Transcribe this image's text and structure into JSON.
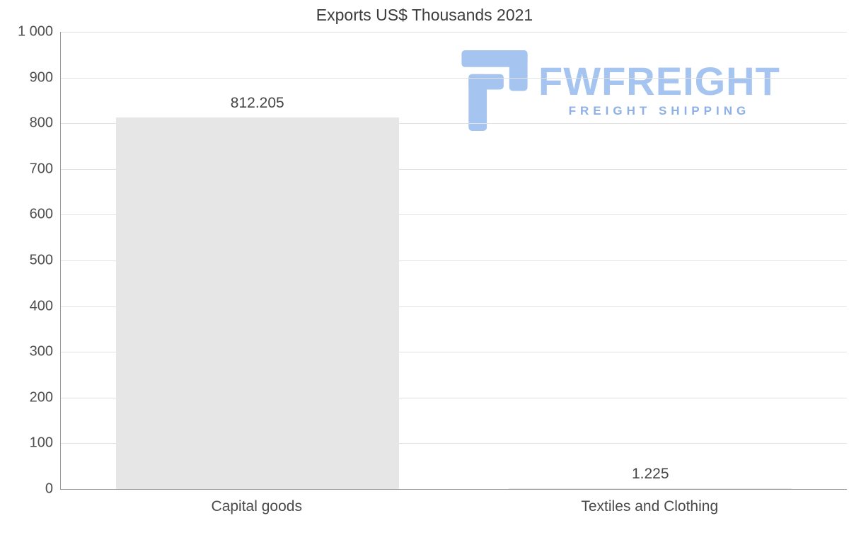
{
  "chart_data": {
    "type": "bar",
    "title": "Exports US$ Thousands 2021",
    "categories": [
      "Capital goods",
      "Textiles and Clothing"
    ],
    "values": [
      812.205,
      1.225
    ],
    "value_labels": [
      "812.205",
      "1.225"
    ],
    "ylim": [
      0,
      1000
    ],
    "yticks": [
      0,
      100,
      200,
      300,
      400,
      500,
      600,
      700,
      800,
      900,
      1000
    ],
    "ytick_labels": [
      "0",
      "100",
      "200",
      "300",
      "400",
      "500",
      "600",
      "700",
      "800",
      "900",
      "1 000"
    ],
    "xlabel": "",
    "ylabel": "",
    "grid": "horizontal",
    "legend": "none",
    "bar_color": "#e6e6e6",
    "bar_width_frac": 0.72
  },
  "logo": {
    "name": "FWFREIGHT",
    "tagline": "FREIGHT SHIPPING",
    "color": "#a6c4f0",
    "tagline_color": "#8fb0e4"
  },
  "colors": {
    "title": "#3d3d3d",
    "axis_text": "#4e4e4e",
    "gridline": "#e2e2e2",
    "axis_line": "#9b9b9b",
    "background": "#ffffff"
  }
}
